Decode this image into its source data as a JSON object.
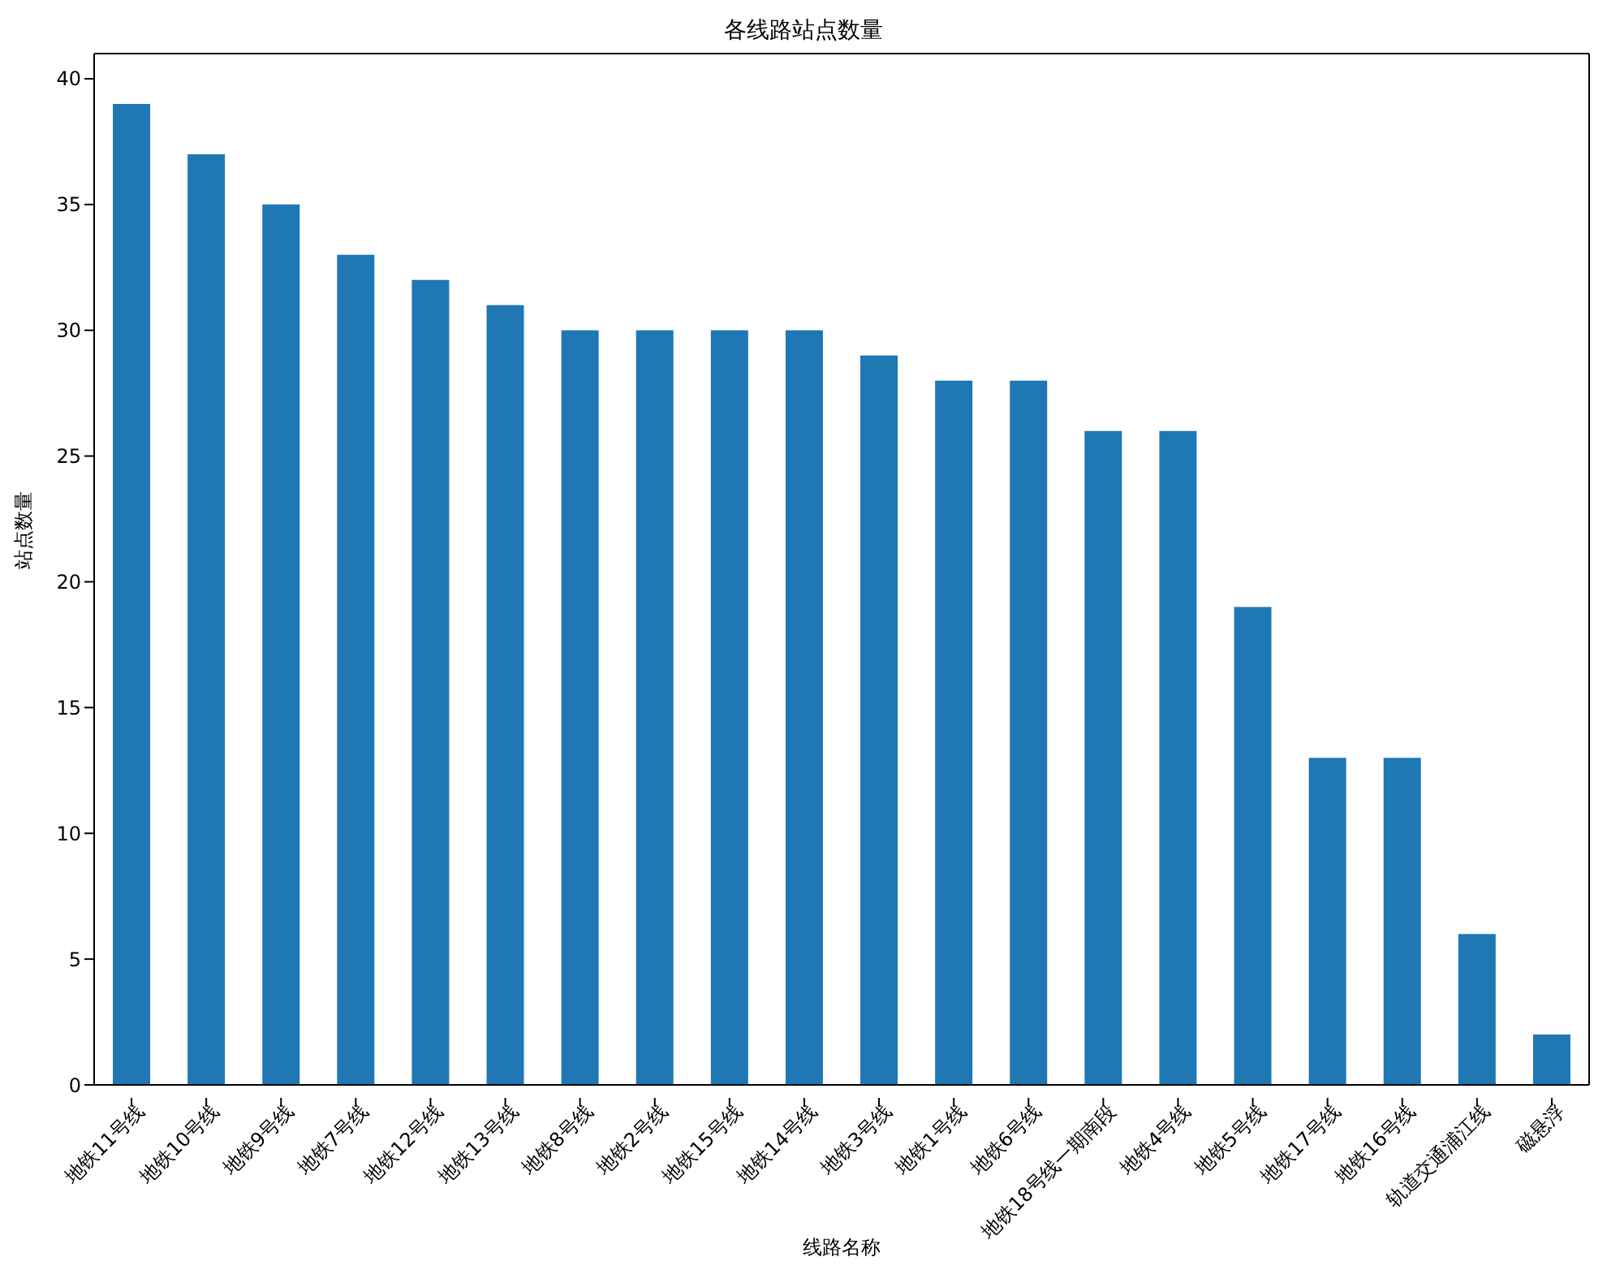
{
  "chart_data": {
    "type": "bar",
    "title": "各线路站点数量",
    "xlabel": "线路名称",
    "ylabel": "站点数量",
    "categories": [
      "地铁11号线",
      "地铁10号线",
      "地铁9号线",
      "地铁7号线",
      "地铁12号线",
      "地铁13号线",
      "地铁8号线",
      "地铁2号线",
      "地铁15号线",
      "地铁14号线",
      "地铁3号线",
      "地铁1号线",
      "地铁6号线",
      "地铁18号线一期南段",
      "地铁4号线",
      "地铁5号线",
      "地铁17号线",
      "地铁16号线",
      "轨道交通浦江线",
      "磁悬浮"
    ],
    "values": [
      39,
      37,
      35,
      33,
      32,
      31,
      30,
      30,
      30,
      30,
      29,
      28,
      28,
      26,
      26,
      19,
      13,
      13,
      6,
      2
    ],
    "color": "#1f77b4",
    "ylim": [
      0,
      41
    ],
    "yticks": [
      0,
      5,
      10,
      15,
      20,
      25,
      30,
      35,
      40
    ],
    "grid": false
  }
}
